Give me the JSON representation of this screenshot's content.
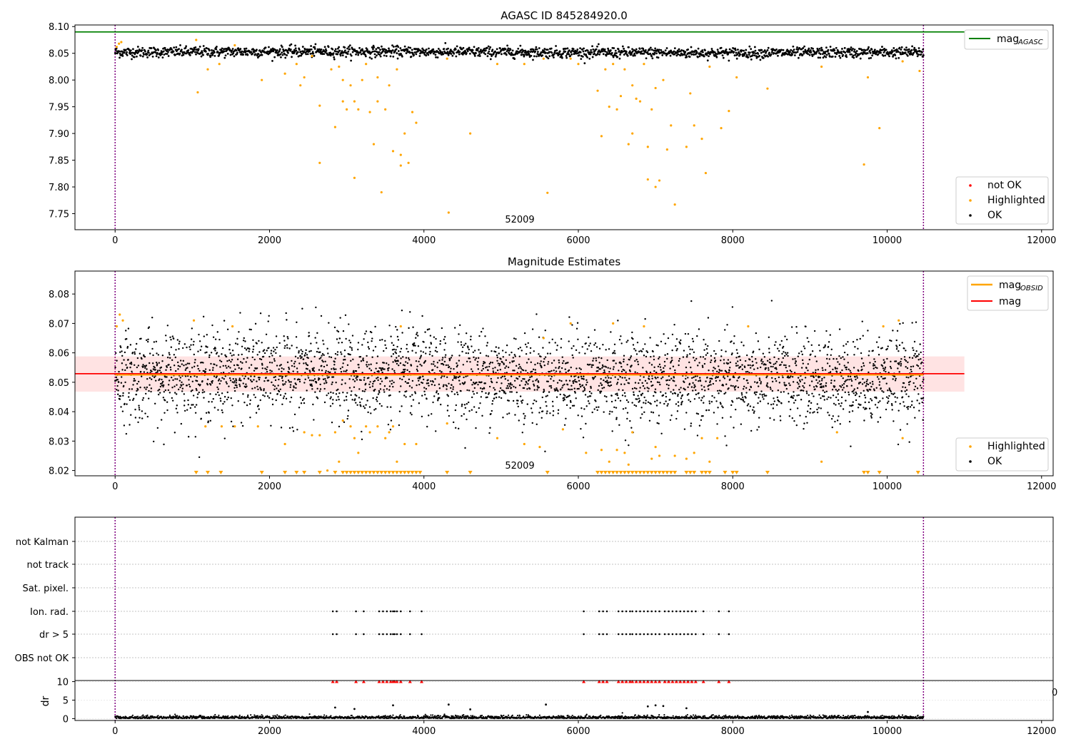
{
  "chart_data": [
    {
      "type": "scatter",
      "title": "AGASC ID 845284920.0",
      "xlim": [
        -520,
        12150
      ],
      "ylim": [
        7.72,
        8.103
      ],
      "x_ticks": [
        0,
        2000,
        4000,
        6000,
        8000,
        10000,
        12000
      ],
      "y_ticks": [
        7.75,
        7.8,
        7.85,
        7.9,
        7.95,
        8.0,
        8.05,
        8.1
      ],
      "obsid_marker_x": [
        0,
        10470
      ],
      "obsid_label": "52009",
      "mag_agasc": 8.09,
      "mag_agasc_line_x": [
        -520,
        11000
      ],
      "ok_band": {
        "center": 8.052,
        "spread": 0.005,
        "x": [
          0,
          10470
        ]
      },
      "highlighted_points": [
        [
          20,
          8.062
        ],
        [
          50,
          8.068
        ],
        [
          80,
          8.071
        ],
        [
          1050,
          8.075
        ],
        [
          1070,
          7.977
        ],
        [
          1200,
          8.02
        ],
        [
          1350,
          8.03
        ],
        [
          1550,
          8.065
        ],
        [
          1900,
          8.0
        ],
        [
          2200,
          8.012
        ],
        [
          2350,
          8.03
        ],
        [
          2400,
          7.99
        ],
        [
          2450,
          8.005
        ],
        [
          2550,
          8.045
        ],
        [
          2650,
          7.845
        ],
        [
          2650,
          7.952
        ],
        [
          2800,
          8.02
        ],
        [
          2850,
          7.912
        ],
        [
          2900,
          8.025
        ],
        [
          2950,
          8.0
        ],
        [
          2950,
          7.96
        ],
        [
          3000,
          7.945
        ],
        [
          3050,
          7.99
        ],
        [
          3100,
          7.817
        ],
        [
          3100,
          7.96
        ],
        [
          3150,
          7.945
        ],
        [
          3200,
          8.0
        ],
        [
          3250,
          8.03
        ],
        [
          3300,
          7.94
        ],
        [
          3350,
          7.88
        ],
        [
          3400,
          8.005
        ],
        [
          3400,
          7.96
        ],
        [
          3450,
          7.79
        ],
        [
          3500,
          7.945
        ],
        [
          3550,
          7.99
        ],
        [
          3600,
          7.867
        ],
        [
          3650,
          8.02
        ],
        [
          3700,
          7.86
        ],
        [
          3700,
          7.84
        ],
        [
          3750,
          7.9
        ],
        [
          3800,
          7.845
        ],
        [
          3850,
          7.94
        ],
        [
          3900,
          7.92
        ],
        [
          4300,
          8.04
        ],
        [
          4320,
          7.752
        ],
        [
          4600,
          7.9
        ],
        [
          4950,
          8.03
        ],
        [
          5300,
          8.03
        ],
        [
          5550,
          8.04
        ],
        [
          5600,
          7.789
        ],
        [
          5900,
          8.04
        ],
        [
          6000,
          8.03
        ],
        [
          6250,
          7.98
        ],
        [
          6300,
          7.895
        ],
        [
          6350,
          8.02
        ],
        [
          6400,
          7.95
        ],
        [
          6450,
          8.03
        ],
        [
          6500,
          7.945
        ],
        [
          6550,
          7.97
        ],
        [
          6600,
          8.02
        ],
        [
          6650,
          7.88
        ],
        [
          6700,
          7.9
        ],
        [
          6700,
          7.99
        ],
        [
          6750,
          7.965
        ],
        [
          6800,
          7.96
        ],
        [
          6850,
          8.03
        ],
        [
          6900,
          7.875
        ],
        [
          6900,
          7.814
        ],
        [
          6950,
          7.945
        ],
        [
          7000,
          7.985
        ],
        [
          7000,
          7.8
        ],
        [
          7050,
          7.812
        ],
        [
          7100,
          8.0
        ],
        [
          7150,
          7.87
        ],
        [
          7200,
          7.915
        ],
        [
          7250,
          7.767
        ],
        [
          7400,
          7.875
        ],
        [
          7450,
          7.975
        ],
        [
          7500,
          7.915
        ],
        [
          7600,
          7.89
        ],
        [
          7650,
          7.826
        ],
        [
          7700,
          8.025
        ],
        [
          7850,
          7.91
        ],
        [
          7950,
          7.942
        ],
        [
          8050,
          8.005
        ],
        [
          8450,
          7.984
        ],
        [
          9150,
          8.025
        ],
        [
          9700,
          7.842
        ],
        [
          9750,
          8.005
        ],
        [
          9900,
          7.91
        ],
        [
          10200,
          8.035
        ],
        [
          10420,
          8.017
        ]
      ],
      "legend": [
        {
          "label": "mag",
          "subscript": "AGASC",
          "color": "#008000",
          "kind": "line"
        },
        {
          "label": "not OK",
          "color": "#ff0000",
          "kind": "marker"
        },
        {
          "label": "Highlighted",
          "color": "#ffa500",
          "kind": "marker"
        },
        {
          "label": "OK",
          "color": "#000000",
          "kind": "marker"
        }
      ]
    },
    {
      "type": "scatter",
      "title": "Magnitude Estimates",
      "xlim": [
        -520,
        12150
      ],
      "ylim": [
        8.0182,
        8.0878
      ],
      "x_ticks": [
        0,
        2000,
        4000,
        6000,
        8000,
        10000,
        12000
      ],
      "y_ticks": [
        8.02,
        8.03,
        8.04,
        8.05,
        8.06,
        8.07,
        8.08
      ],
      "obsid_marker_x": [
        0,
        10470
      ],
      "obsid_label": "52009",
      "mag_obsid": 8.0525,
      "mag": 8.0529,
      "mag_line_x": [
        -520,
        11000
      ],
      "mag_obsid_line_x": [
        0,
        10470
      ],
      "band": {
        "low": 8.0468,
        "high": 8.0588,
        "x": [
          -520,
          11000
        ]
      },
      "ok_band": {
        "center": 8.052,
        "spread": 0.0075,
        "x": [
          0,
          10470
        ]
      },
      "highlighted_points": [
        [
          20,
          8.069
        ],
        [
          60,
          8.073
        ],
        [
          100,
          8.071
        ],
        [
          1020,
          8.071
        ],
        [
          1520,
          8.069
        ],
        [
          1170,
          8.035
        ],
        [
          1380,
          8.035
        ],
        [
          1550,
          8.035
        ],
        [
          1850,
          8.035
        ],
        [
          2200,
          8.029
        ],
        [
          2450,
          8.033
        ],
        [
          2550,
          8.032
        ],
        [
          2650,
          8.032
        ],
        [
          2750,
          8.02
        ],
        [
          2850,
          8.033
        ],
        [
          2900,
          8.023
        ],
        [
          2950,
          8.037
        ],
        [
          3050,
          8.035
        ],
        [
          3100,
          8.031
        ],
        [
          3150,
          8.026
        ],
        [
          3250,
          8.035
        ],
        [
          3300,
          8.033
        ],
        [
          3400,
          8.035
        ],
        [
          3500,
          8.031
        ],
        [
          3550,
          8.033
        ],
        [
          3600,
          8.035
        ],
        [
          3650,
          8.023
        ],
        [
          3700,
          8.069
        ],
        [
          3750,
          8.029
        ],
        [
          3900,
          8.029
        ],
        [
          4300,
          8.036
        ],
        [
          4950,
          8.031
        ],
        [
          5300,
          8.029
        ],
        [
          5500,
          8.028
        ],
        [
          5550,
          8.065
        ],
        [
          5800,
          8.034
        ],
        [
          5900,
          8.07
        ],
        [
          6100,
          8.026
        ],
        [
          6300,
          8.027
        ],
        [
          6400,
          8.023
        ],
        [
          6450,
          8.07
        ],
        [
          6500,
          8.027
        ],
        [
          6600,
          8.026
        ],
        [
          6700,
          8.033
        ],
        [
          6650,
          8.022
        ],
        [
          6850,
          8.069
        ],
        [
          6950,
          8.024
        ],
        [
          7000,
          8.028
        ],
        [
          7050,
          8.025
        ],
        [
          7250,
          8.025
        ],
        [
          7400,
          8.024
        ],
        [
          7500,
          8.026
        ],
        [
          7600,
          8.031
        ],
        [
          7700,
          8.023
        ],
        [
          7800,
          8.031
        ],
        [
          8200,
          8.069
        ],
        [
          9150,
          8.023
        ],
        [
          9350,
          8.033
        ],
        [
          9950,
          8.069
        ],
        [
          10200,
          8.031
        ],
        [
          10150,
          8.071
        ]
      ],
      "clipped_highlighted_x": [
        1050,
        1200,
        1370,
        1900,
        2200,
        2350,
        2450,
        2650,
        2850,
        2950,
        3000,
        3050,
        3100,
        3150,
        3200,
        3250,
        3300,
        3350,
        3400,
        3450,
        3500,
        3550,
        3600,
        3650,
        3700,
        3750,
        3800,
        3850,
        3900,
        3950,
        4300,
        4600,
        5600,
        6250,
        6300,
        6350,
        6400,
        6450,
        6500,
        6550,
        6600,
        6650,
        6700,
        6750,
        6800,
        6850,
        6900,
        6950,
        7000,
        7050,
        7100,
        7150,
        7200,
        7250,
        7400,
        7450,
        7500,
        7600,
        7650,
        7700,
        7900,
        8000,
        8050,
        8450,
        9700,
        9750,
        9900,
        10400
      ],
      "legend": [
        {
          "label": "mag",
          "subscript": "OBSID",
          "color": "#ffa500",
          "kind": "line"
        },
        {
          "label": "mag",
          "color": "#ff0000",
          "kind": "line"
        },
        {
          "label": "Highlighted",
          "color": "#ffa500",
          "kind": "marker"
        },
        {
          "label": "OK",
          "color": "#000000",
          "kind": "marker"
        }
      ]
    },
    {
      "type": "scatter",
      "title": "",
      "xlim": [
        -520,
        12150
      ],
      "flag_labels": [
        "not Kalman",
        "not track",
        "Sat. pixel.",
        "Ion. rad.",
        "dr > 5",
        "OBS not OK"
      ],
      "flag_x": {
        "Ion. rad.": [
          2820,
          2870,
          3120,
          3220,
          3420,
          3470,
          3520,
          3570,
          3600,
          3620,
          3650,
          3700,
          3820,
          3970,
          6070,
          6270,
          6320,
          6370,
          6520,
          6570,
          6620,
          6670,
          6700,
          6750,
          6800,
          6850,
          6900,
          6950,
          7000,
          7050,
          7120,
          7170,
          7220,
          7270,
          7320,
          7370,
          7420,
          7470,
          7520,
          7620,
          7820,
          7950
        ],
        "dr > 5": [
          2820,
          2870,
          3120,
          3220,
          3420,
          3470,
          3520,
          3570,
          3600,
          3620,
          3650,
          3700,
          3820,
          3970,
          6070,
          6270,
          6320,
          6370,
          6520,
          6570,
          6620,
          6670,
          6700,
          6750,
          6800,
          6850,
          6900,
          6950,
          7000,
          7050,
          7120,
          7170,
          7220,
          7270,
          7320,
          7370,
          7420,
          7470,
          7520,
          7620,
          7820,
          7950
        ]
      },
      "obsid_marker_x": [
        0,
        10470
      ],
      "dr_panel": {
        "ylabel": "dr",
        "y_ticks": [
          0,
          5,
          10
        ],
        "ylim": [
          -0.5,
          10.3
        ],
        "clip_value": 10,
        "clipped_x": [
          2820,
          2870,
          3120,
          3220,
          3420,
          3470,
          3520,
          3570,
          3600,
          3620,
          3650,
          3700,
          3820,
          3970,
          6070,
          6270,
          6320,
          6370,
          6520,
          6570,
          6620,
          6670,
          6700,
          6750,
          6800,
          6850,
          6900,
          6950,
          7000,
          7050,
          7120,
          7170,
          7220,
          7270,
          7320,
          7370,
          7420,
          7470,
          7520,
          7620,
          7820,
          7950
        ],
        "outliers": [
          [
            2850,
            3.0
          ],
          [
            3100,
            2.6
          ],
          [
            3600,
            3.6
          ],
          [
            4320,
            3.8
          ],
          [
            4600,
            2.5
          ],
          [
            5580,
            3.8
          ],
          [
            6900,
            3.3
          ],
          [
            7000,
            3.6
          ],
          [
            7100,
            3.4
          ],
          [
            7400,
            2.8
          ],
          [
            9750,
            1.8
          ]
        ],
        "stray_tick_label": "0"
      },
      "x_ticks": [
        0,
        2000,
        4000,
        6000,
        8000,
        10000,
        12000
      ]
    }
  ]
}
